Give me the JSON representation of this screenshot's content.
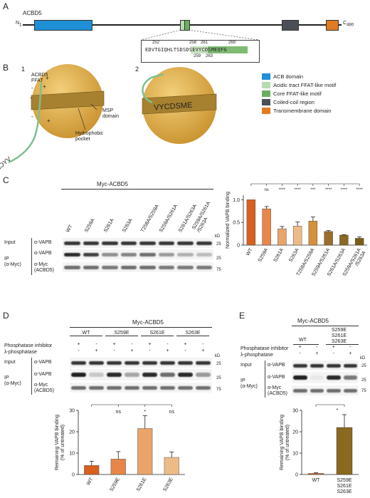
{
  "panels": {
    "A": "A",
    "B": "B",
    "C": "C",
    "D": "D",
    "E": "E"
  },
  "colors": {
    "acb": "#1f8fd6",
    "acidic": "#b8dbb0",
    "core": "#6aaf5e",
    "coiled": "#4a4f57",
    "tm": "#e07b22",
    "bar_wt": "#d95f1f",
    "bar_s259": "#e8864a",
    "bar_s261": "#e9a46c",
    "bar_s263": "#edbb86",
    "bar_dark": "#8a6a20",
    "msp": "#e5b14a"
  },
  "panelA": {
    "protein": "ACBD5",
    "n_term": "N",
    "n_sub": "1",
    "c_term": "C",
    "c_sub": "490",
    "seq_top_nums": [
      "252",
      "258",
      "261",
      "269"
    ],
    "seq_bottom_nums": [
      "259",
      "263"
    ],
    "sequence": "EDVTGIQHLTSDSDSEVYCDSMEQFG"
  },
  "panelB": {
    "num1": "1",
    "num2": "2",
    "ffat_label": "ACBD5\nFFAT",
    "ffat_seq": "VYCDSME",
    "msp_label": "MSP\ndomain",
    "pocket_label": "Hydrophobic\npocket",
    "plus": "+",
    "minus": "-",
    "legend": [
      {
        "label": "ACB domain",
        "color": "#1f8fd6"
      },
      {
        "label": "Acidic tract FFAT-like motif",
        "color": "#b8dbb0"
      },
      {
        "label": "Core FFAT-like motif",
        "color": "#6aaf5e"
      },
      {
        "label": "Coiled-coil region",
        "color": "#4a4f57"
      },
      {
        "label": "Transmembrane domain",
        "color": "#e07b22"
      }
    ]
  },
  "panelC": {
    "header": "Myc-ACBD5",
    "lanes": [
      "WT",
      "S259A",
      "S261A",
      "S263A",
      "T258A/S259A",
      "S259A/S261A",
      "S261A/S263A",
      "S259A/S261A\n/S263A"
    ],
    "input": "Input",
    "ip": "IP\n(α-Myc)",
    "ab_vapb": "α-VAPB",
    "ab_myc": "α-Myc\n(ACBD5)",
    "kd": "kD",
    "mw": [
      "25",
      "25",
      "75"
    ]
  },
  "chartC": {
    "type": "bar",
    "ylabel": "Normalized VAPB binding",
    "yticks": [
      "0",
      "0.5",
      "1.0"
    ],
    "ylim": [
      0,
      1.1
    ],
    "categories": [
      "WT",
      "S259A",
      "S261A",
      "S263A",
      "T258A/S259A",
      "S259A/S261A",
      "S261A/S263A",
      "S259A/S261A\n/S263A"
    ],
    "values": [
      1.0,
      0.8,
      0.36,
      0.42,
      0.53,
      0.3,
      0.22,
      0.15
    ],
    "errors": [
      0,
      0.05,
      0.05,
      0.09,
      0.09,
      0.02,
      0.01,
      0.03
    ],
    "sig": [
      "ns",
      "****",
      "****",
      "***",
      "****",
      "****",
      "****"
    ]
  },
  "panelD": {
    "header": "Myc-ACBD5",
    "groups": [
      "WT",
      "S259E",
      "S261E",
      "S263E"
    ],
    "phosphatase_inhibitor": "Phosphatase inhibitor",
    "lambda": "λ-phosphatase",
    "pi_signs": [
      "+",
      "-",
      "+",
      "-",
      "+",
      "-",
      "+",
      "-"
    ],
    "lp_signs": [
      "-",
      "+",
      "-",
      "+",
      "-",
      "+",
      "-",
      "+"
    ],
    "input": "Input",
    "ip": "IP\n(α-Myc)",
    "ab_vapb": "α-VAPB",
    "ab_myc": "α-Myc\n(ACBD5)",
    "kd": "kD",
    "mw": [
      "25",
      "25",
      "75"
    ]
  },
  "chartD": {
    "type": "bar",
    "ylabel": "Remaining VAPB binding\n(% of untreated)",
    "yticks": [
      "0",
      "10",
      "20",
      "30"
    ],
    "ylim": [
      0,
      30
    ],
    "categories": [
      "WT",
      "S259E",
      "S261E",
      "S263E"
    ],
    "values": [
      4.2,
      7.2,
      21.5,
      8
    ],
    "errors": [
      2,
      3.5,
      6,
      2.5
    ],
    "sig": [
      "ns",
      "*",
      "ns"
    ]
  },
  "panelE": {
    "header": "Myc-ACBD5",
    "groups": [
      "WT",
      "S259E\nS261E\nS263E"
    ],
    "phosphatase_inhibitor": "Phosphatase inhibitor",
    "lambda": "λ-phosphatase",
    "pi_signs": [
      "+",
      "-",
      "+",
      "-"
    ],
    "lp_signs": [
      "-",
      "+",
      "-",
      "+"
    ],
    "input": "Input",
    "ip": "IP\n(α-Myc)",
    "ab_vapb": "α-VAPB",
    "ab_myc": "α-Myc\n(ACBD5)",
    "kd": "kD",
    "mw": [
      "25",
      "25",
      "75"
    ]
  },
  "chartE": {
    "type": "bar",
    "ylabel": "Remaining VAPB binding\n(% of untreated)",
    "yticks": [
      "0",
      "10",
      "20",
      "30"
    ],
    "ylim": [
      0,
      30
    ],
    "categories": [
      "WT",
      "S259E\nS261E\nS263E"
    ],
    "values": [
      0.5,
      22
    ],
    "errors": [
      0.3,
      6
    ],
    "sig": [
      "*"
    ]
  }
}
